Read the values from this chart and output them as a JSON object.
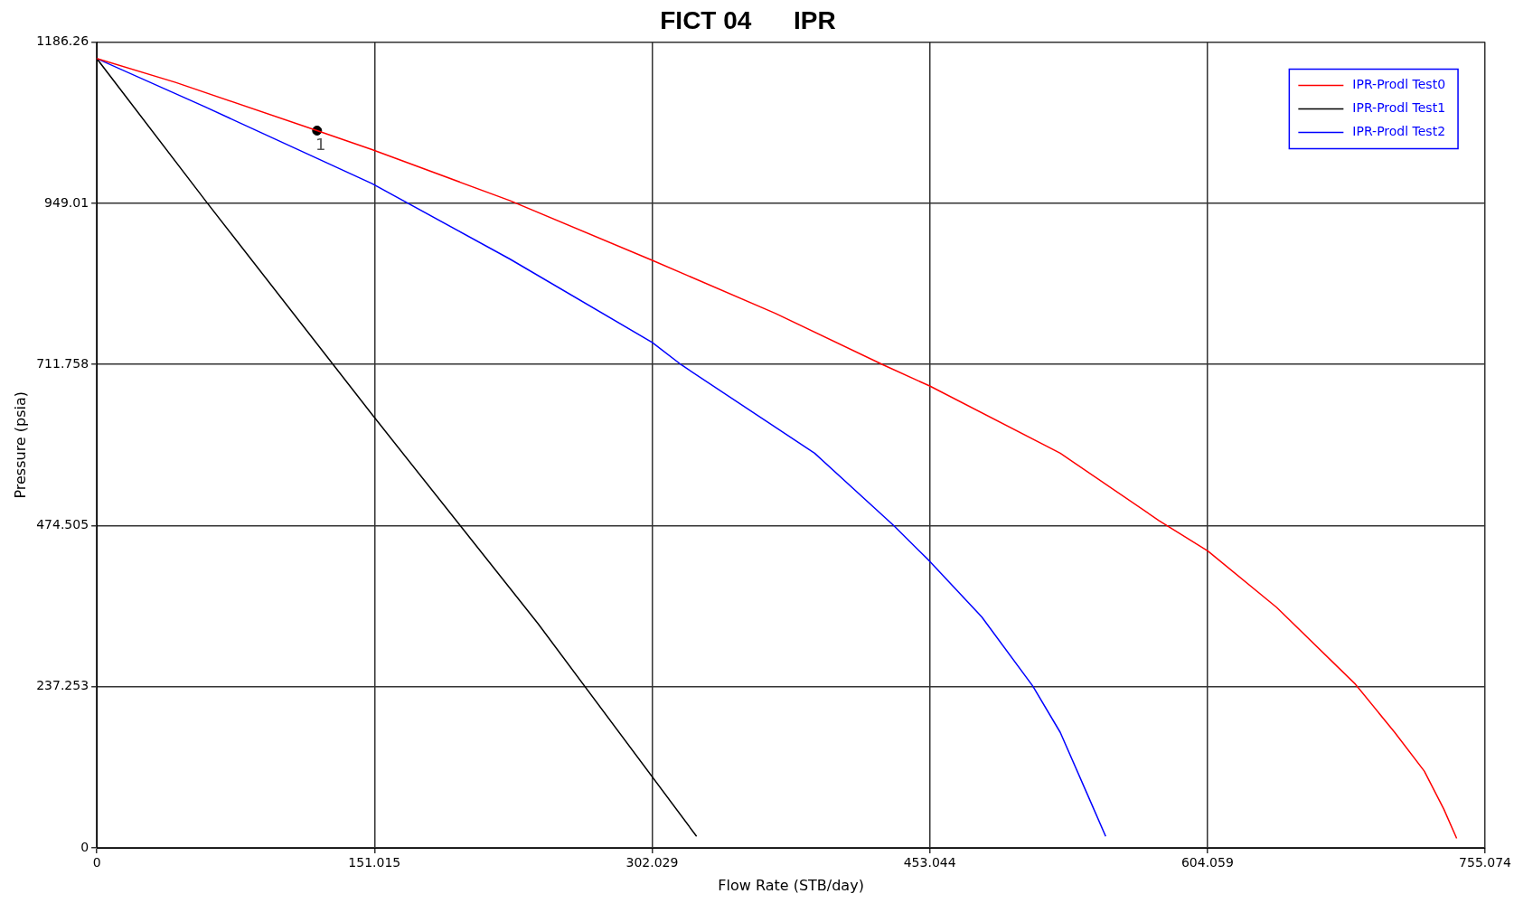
{
  "chart_data": {
    "type": "line",
    "title": "FICT 04      IPR",
    "xlabel": "Flow Rate (STB/day)",
    "ylabel": "Pressure (psia)",
    "xlim": [
      0,
      755.074
    ],
    "xticks": [
      0,
      151.015,
      302.029,
      453.044,
      604.059,
      755.074
    ],
    "ylim": [
      0,
      1186.26
    ],
    "yticks": [
      0,
      237.253,
      474.505,
      711.758,
      949.01,
      1186.26
    ],
    "grid": true,
    "legend": "top right",
    "marker": "none",
    "line_style": "solid",
    "series": [
      {
        "name": "IPR-Prodl Test0",
        "color": "#ff0000",
        "x": [
          0,
          42.8,
          119.8,
          149.7,
          224.6,
          302.1,
          369,
          427.8,
          453,
          524,
          577.6,
          604.3,
          641.7,
          684.5,
          705.9,
          722,
          732.6,
          739.6
        ],
        "values": [
          1162,
          1127,
          1056,
          1028,
          953,
          865,
          787,
          711,
          680,
          581,
          482,
          437,
          354,
          241,
          170,
          113,
          57,
          14
        ]
      },
      {
        "name": "IPR-Prodl Test1",
        "color": "#000000",
        "x": [
          0,
          59.9,
          149.7,
          240,
          326.2
        ],
        "values": [
          1162,
          950,
          638,
          330,
          17
        ]
      },
      {
        "name": "IPR-Prodl Test2",
        "color": "#0000ff",
        "x": [
          0,
          58.8,
          149.7,
          224.6,
          302.1,
          318,
          390.4,
          433.2,
          453,
          481.3,
          509.1,
          524,
          540,
          548.7
        ],
        "values": [
          1162,
          1091,
          978,
          867,
          744,
          711,
          581,
          475,
          422,
          340,
          238,
          170,
          71,
          17
        ]
      },
      {
        "type": "scatter",
        "color": "#000000",
        "marker": "circle",
        "x": [
          119.8
        ],
        "values": [
          1056
        ]
      }
    ],
    "annotations": [
      {
        "text": "1",
        "x": 119.8,
        "y": 1056
      }
    ]
  }
}
